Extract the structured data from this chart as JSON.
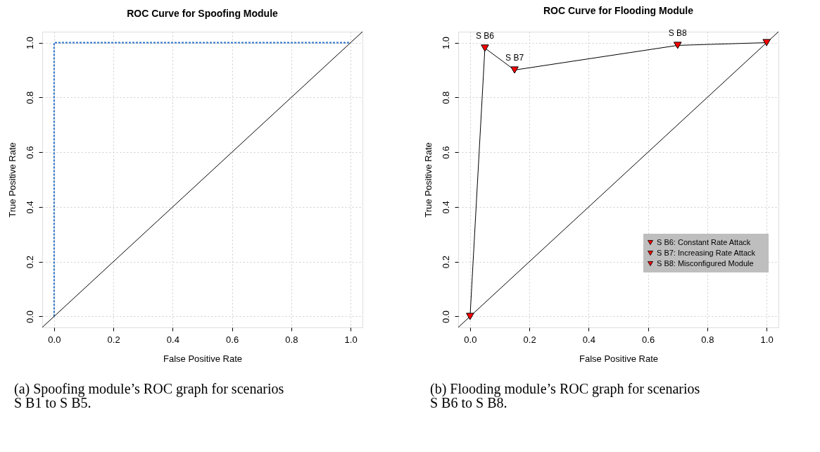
{
  "chart_data": [
    {
      "type": "line",
      "title": "ROC Curve for Spoofing Module",
      "xlabel": "False Positive Rate",
      "ylabel": "True Positive Rate",
      "xlim": [
        -0.04,
        1.04
      ],
      "ylim": [
        -0.04,
        1.04
      ],
      "xticks": [
        {
          "value": 0,
          "label": "0.0"
        },
        0.2,
        0.4,
        0.6,
        0.8,
        {
          "value": 1,
          "label": "1.0"
        }
      ],
      "yticks": [
        {
          "value": 0,
          "label": "0.0"
        },
        0.2,
        0.4,
        0.6,
        0.8,
        {
          "value": 1,
          "label": "1.0"
        }
      ],
      "grid": true,
      "marker": "none",
      "series": [
        {
          "color": "#3a7bc8",
          "line_style": "dotted",
          "x": [
            0,
            0,
            1
          ],
          "values": [
            0,
            1,
            1
          ]
        },
        {
          "color": "#000000",
          "line_style": "solid",
          "x": [
            -0.04,
            1.04
          ],
          "values": [
            -0.04,
            1.04
          ]
        }
      ],
      "annotations": [
        "(a) Spoofing module’s ROC graph for scenarios S B1 to S B5."
      ]
    },
    {
      "type": "line",
      "title": "ROC Curve for Flooding Module",
      "xlabel": "False Positive Rate",
      "ylabel": "True Positive Rate",
      "xlim": [
        -0.04,
        1.04
      ],
      "ylim": [
        -0.04,
        1.04
      ],
      "xticks": [
        {
          "value": 0,
          "label": "0.0"
        },
        0.2,
        0.4,
        0.6,
        0.8,
        {
          "value": 1,
          "label": "1.0"
        }
      ],
      "yticks": [
        {
          "value": 0,
          "label": "0.0"
        },
        0.2,
        0.4,
        0.6,
        0.8,
        {
          "value": 1,
          "label": "1.0"
        }
      ],
      "grid": true,
      "legend": "bottom right",
      "series": [
        {
          "color": "#000000",
          "line_style": "solid",
          "marker": "none",
          "x": [
            0,
            0.05,
            0.15,
            0.7,
            1
          ],
          "values": [
            0,
            0.98,
            0.9,
            0.99,
            1
          ]
        },
        {
          "color": "#000000",
          "line_style": "solid",
          "marker": "none",
          "x": [
            -0.04,
            1.04
          ],
          "values": [
            -0.04,
            1.04
          ]
        },
        {
          "type": "scatter",
          "color": "#ff0000",
          "marker": "triangle",
          "x": [
            0,
            1
          ],
          "values": [
            0,
            1
          ]
        },
        {
          "type": "scatter",
          "name": "S B6: Constant Rate Attack",
          "color": "#ff0000",
          "marker": "triangle",
          "x": [
            0.05
          ],
          "values": [
            0.98
          ]
        },
        {
          "type": "scatter",
          "name": "S B7: Increasing Rate Attack",
          "color": "#ff0000",
          "marker": "triangle",
          "x": [
            0.15
          ],
          "values": [
            0.9
          ]
        },
        {
          "type": "scatter",
          "name": "S B8: Misconfigured Module",
          "color": "#ff0000",
          "marker": "triangle",
          "x": [
            0.7
          ],
          "values": [
            0.99
          ]
        }
      ],
      "annotations": [
        {
          "text": "S B6",
          "x": 0.05,
          "y": 0.98
        },
        {
          "text": "S B7",
          "x": 0.15,
          "y": 0.9
        },
        {
          "text": "S B8",
          "x": 0.7,
          "y": 0.99
        },
        "(b) Flooding module’s ROC graph for scenarios S B6 to S B8."
      ]
    }
  ]
}
